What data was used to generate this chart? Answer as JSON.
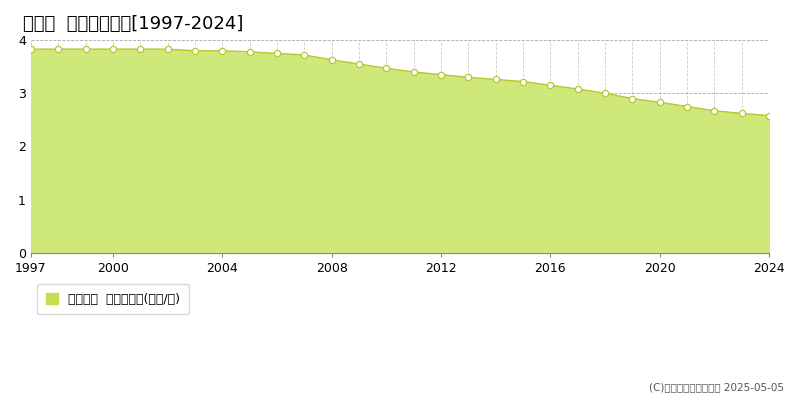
{
  "title": "仁木町  基準地価推移[1997-2024]",
  "years": [
    1997,
    1998,
    1999,
    2000,
    2001,
    2002,
    2003,
    2004,
    2005,
    2006,
    2007,
    2008,
    2009,
    2010,
    2011,
    2012,
    2013,
    2014,
    2015,
    2016,
    2017,
    2018,
    2019,
    2020,
    2021,
    2022,
    2023,
    2024
  ],
  "values": [
    3.83,
    3.83,
    3.83,
    3.83,
    3.83,
    3.83,
    3.8,
    3.8,
    3.78,
    3.75,
    3.72,
    3.63,
    3.55,
    3.47,
    3.4,
    3.35,
    3.3,
    3.26,
    3.22,
    3.15,
    3.08,
    3.0,
    2.9,
    2.83,
    2.75,
    2.67,
    2.62,
    2.58
  ],
  "fill_color": "#cfe87a",
  "line_color": "#b8c832",
  "marker_facecolor": "#ffffff",
  "marker_edgecolor": "#b8c832",
  "grid_color_h": "#aaaaaa",
  "grid_color_v": "#cccccc",
  "bg_color": "#ffffff",
  "plot_bg_color": "#ffffff",
  "ylim": [
    0,
    4
  ],
  "yticks": [
    0,
    1,
    2,
    3,
    4
  ],
  "xticks": [
    1997,
    2000,
    2004,
    2008,
    2012,
    2016,
    2020,
    2024
  ],
  "legend_label": "基準地価  平均坪単価(万円/坪)",
  "copyright_text": "(C)土地価格ドットコム 2025-05-05",
  "title_fontsize": 13,
  "legend_fontsize": 9,
  "axis_fontsize": 9,
  "legend_square_color": "#c8dc50"
}
